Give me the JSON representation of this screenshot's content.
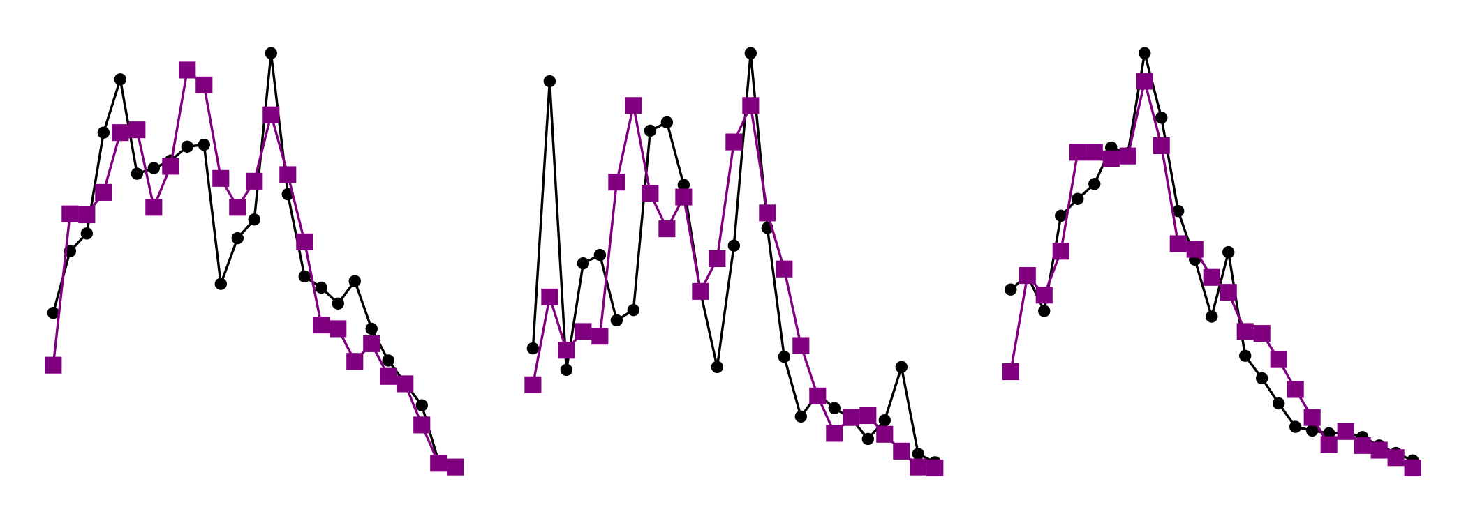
{
  "chart_data": [
    {
      "type": "line",
      "x": [
        0,
        1,
        2,
        3,
        4,
        5,
        6,
        7,
        8,
        9,
        10,
        11,
        12,
        13,
        14,
        15,
        16,
        17,
        18,
        19,
        20,
        21,
        22,
        23,
        24
      ],
      "xlim": [
        0,
        24
      ],
      "ylim": [
        0,
        550
      ],
      "series": [
        {
          "color": "#000000",
          "marker": "circle",
          "values": [
            215,
            281,
            300,
            408,
            465,
            364,
            370,
            378,
            393,
            395,
            246,
            295,
            315,
            493,
            342,
            254,
            242,
            225,
            249,
            198,
            164,
            140,
            116,
            56,
            50
          ]
        },
        {
          "color": "#800080",
          "marker": "square",
          "values": [
            159,
            321,
            320,
            344,
            408,
            411,
            328,
            372,
            475,
            459,
            359,
            328,
            356,
            427,
            363,
            291,
            202,
            198,
            163,
            182,
            147,
            139,
            95,
            54,
            50
          ]
        }
      ]
    },
    {
      "type": "line",
      "x": [
        0,
        1,
        2,
        3,
        4,
        5,
        6,
        7,
        8,
        9,
        10,
        11,
        12,
        13,
        14,
        15,
        16,
        17,
        18,
        19,
        20,
        21,
        22,
        23,
        24
      ],
      "xlim": [
        0,
        24
      ],
      "ylim": [
        0,
        550
      ],
      "series": [
        {
          "color": "#000000",
          "marker": "circle",
          "values": [
            177,
            463,
            154,
            268,
            277,
            207,
            218,
            410,
            419,
            352,
            238,
            157,
            287,
            493,
            306,
            168,
            104,
            128,
            113,
            102,
            80,
            100,
            157,
            64,
            55
          ]
        },
        {
          "color": "#800080",
          "marker": "square",
          "values": [
            138,
            232,
            175,
            195,
            190,
            355,
            437,
            343,
            305,
            339,
            238,
            273,
            398,
            437,
            322,
            262,
            180,
            126,
            86,
            103,
            105,
            85,
            67,
            50,
            49
          ]
        }
      ]
    },
    {
      "type": "line",
      "x": [
        0,
        1,
        2,
        3,
        4,
        5,
        6,
        7,
        8,
        9,
        10,
        11,
        12,
        13,
        14,
        15,
        16,
        17,
        18,
        19,
        20,
        21,
        22,
        23,
        24
      ],
      "xlim": [
        0,
        24
      ],
      "ylim": [
        0,
        550
      ],
      "series": [
        {
          "color": "#000000",
          "marker": "circle",
          "values": [
            240,
            255,
            217,
            319,
            337,
            353,
            392,
            386,
            493,
            424,
            324,
            272,
            211,
            280,
            169,
            145,
            118,
            93,
            89,
            86,
            87,
            82,
            73,
            65,
            57
          ]
        },
        {
          "color": "#800080",
          "marker": "square",
          "values": [
            152,
            255,
            234,
            281,
            387,
            387,
            380,
            383,
            463,
            394,
            289,
            283,
            253,
            237,
            195,
            193,
            165,
            133,
            103,
            74,
            88,
            73,
            68,
            60,
            49
          ]
        }
      ]
    }
  ]
}
